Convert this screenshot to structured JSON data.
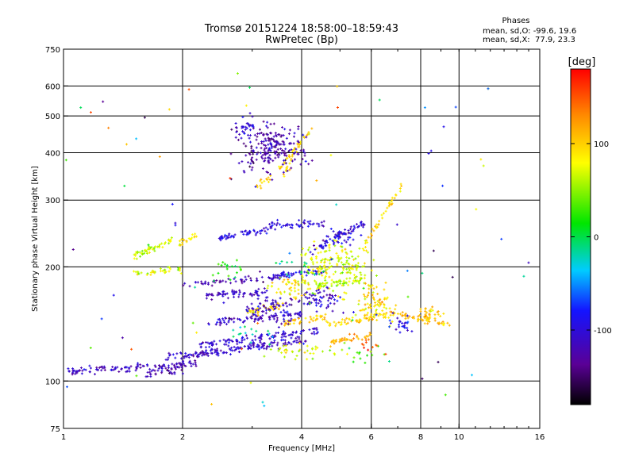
{
  "chart_data": {
    "type": "scatter",
    "title": "Tromsø 20151224 18:58:00–18:59:43",
    "subtitle": "RwPretec (Bp)",
    "stats": {
      "heading": "Phases",
      "line_o": "mean, sd,O: -99.6, 19.6",
      "line_x": "mean, sd,X:  77.9, 23.3"
    },
    "xlabel": "Frequency [MHz]",
    "ylabel": "Stationary phase Virtual Height [km]",
    "x_scale": "log",
    "y_scale": "log",
    "xlim": [
      1,
      16
    ],
    "ylim": [
      75,
      750
    ],
    "x_ticks": [
      {
        "value": 1,
        "label": "1"
      },
      {
        "value": 2,
        "label": "2"
      },
      {
        "value": 4,
        "label": "4"
      },
      {
        "value": 6,
        "label": "6"
      },
      {
        "value": 8,
        "label": "8"
      },
      {
        "value": 10,
        "label": "10"
      },
      {
        "value": 16,
        "label": "16"
      }
    ],
    "y_ticks": [
      {
        "value": 75,
        "label": "75"
      },
      {
        "value": 100,
        "label": "100"
      },
      {
        "value": 200,
        "label": "200"
      },
      {
        "value": 300,
        "label": "300"
      },
      {
        "value": 400,
        "label": "400"
      },
      {
        "value": 500,
        "label": "500"
      },
      {
        "value": 600,
        "label": "600"
      },
      {
        "value": 750,
        "label": "750"
      }
    ],
    "x_grid": [
      2,
      4,
      6,
      8,
      10
    ],
    "y_grid": [
      100,
      200,
      300,
      400,
      500,
      600
    ],
    "grid": true,
    "colorbar": {
      "label": "[deg]",
      "range": [
        -180,
        180
      ],
      "ticks": [
        {
          "value": 100,
          "label": "100"
        },
        {
          "value": 0,
          "label": "0"
        },
        {
          "value": -100,
          "label": "-100"
        }
      ],
      "placement": "right"
    },
    "clusters": [
      {
        "type": "trace",
        "x0": 1.02,
        "x1": 2.2,
        "h0": 106,
        "h1": 111,
        "phase": -115,
        "n": 120
      },
      {
        "type": "trace",
        "x0": 1.8,
        "x1": 4.1,
        "h0": 115,
        "h1": 128,
        "phase": -110,
        "n": 150
      },
      {
        "type": "trace",
        "x0": 1.6,
        "x1": 2.1,
        "h0": 105,
        "h1": 108,
        "phase": -125,
        "n": 30
      },
      {
        "type": "trace",
        "x0": 2.2,
        "x1": 4.4,
        "h0": 124,
        "h1": 136,
        "phase": -105,
        "n": 110
      },
      {
        "type": "trace",
        "x0": 2.3,
        "x1": 4.0,
        "h0": 143,
        "h1": 150,
        "phase": -110,
        "n": 80
      },
      {
        "type": "trace",
        "x0": 2.3,
        "x1": 3.3,
        "h0": 168,
        "h1": 172,
        "phase": -115,
        "n": 60
      },
      {
        "type": "trace",
        "x0": 2.0,
        "x1": 3.2,
        "h0": 180,
        "h1": 186,
        "phase": -120,
        "n": 45
      },
      {
        "type": "trace",
        "x0": 3.3,
        "x1": 4.6,
        "h0": 188,
        "h1": 196,
        "phase": -100,
        "n": 60
      },
      {
        "type": "trace",
        "x0": 4.3,
        "x1": 5.8,
        "h0": 178,
        "h1": 186,
        "phase": 60,
        "n": 50
      },
      {
        "type": "trace",
        "x0": 2.4,
        "x1": 3.3,
        "h0": 236,
        "h1": 252,
        "phase": -95,
        "n": 50
      },
      {
        "type": "trace",
        "x0": 3.3,
        "x1": 4.6,
        "h0": 256,
        "h1": 262,
        "phase": -100,
        "n": 50
      },
      {
        "type": "trace",
        "x0": 4.2,
        "x1": 5.8,
        "h0": 220,
        "h1": 262,
        "phase": -105,
        "n": 60
      },
      {
        "type": "trace",
        "x0": 1.5,
        "x1": 1.9,
        "h0": 212,
        "h1": 238,
        "phase": 65,
        "n": 55
      },
      {
        "type": "trace",
        "x0": 1.5,
        "x1": 2.0,
        "h0": 192,
        "h1": 198,
        "phase": 70,
        "n": 35
      },
      {
        "type": "trace",
        "x0": 1.95,
        "x1": 2.2,
        "h0": 230,
        "h1": 245,
        "phase": 90,
        "n": 20
      },
      {
        "type": "trace",
        "x0": 2.9,
        "x1": 3.6,
        "h0": 150,
        "h1": 160,
        "phase": 95,
        "n": 40
      },
      {
        "type": "trace",
        "x0": 3.6,
        "x1": 4.6,
        "h0": 142,
        "h1": 148,
        "phase": 100,
        "n": 40
      },
      {
        "type": "trace",
        "x0": 4.6,
        "x1": 7.0,
        "h0": 140,
        "h1": 152,
        "phase": 95,
        "n": 60
      },
      {
        "type": "trace",
        "x0": 7.0,
        "x1": 9.5,
        "h0": 150,
        "h1": 140,
        "phase": 105,
        "n": 45
      },
      {
        "type": "trace",
        "x0": 4.7,
        "x1": 6.0,
        "h0": 126,
        "h1": 132,
        "phase": 110,
        "n": 40
      },
      {
        "type": "trace",
        "x0": 5.8,
        "x1": 7.2,
        "h0": 230,
        "h1": 330,
        "phase": 95,
        "n": 40
      },
      {
        "type": "trace",
        "x0": 3.5,
        "x1": 4.3,
        "h0": 360,
        "h1": 470,
        "phase": 95,
        "n": 35
      },
      {
        "type": "trace",
        "x0": 3.05,
        "x1": 3.35,
        "h0": 325,
        "h1": 345,
        "phase": 100,
        "n": 14
      },
      {
        "type": "trace",
        "x0": 3.6,
        "x1": 3.8,
        "h0": 350,
        "h1": 378,
        "phase": 90,
        "n": 12
      },
      {
        "type": "blob",
        "xc": 3.35,
        "hc": 410,
        "dx": 0.16,
        "dh": 0.12,
        "phase": -125,
        "n": 220
      },
      {
        "type": "blob",
        "xc": 2.9,
        "hc": 470,
        "dx": 0.05,
        "dh": 0.05,
        "phase": -105,
        "n": 25
      },
      {
        "type": "blob",
        "xc": 3.3,
        "hc": 155,
        "dx": 0.14,
        "dh": 0.07,
        "phase": -115,
        "n": 80
      },
      {
        "type": "blob",
        "xc": 4.5,
        "hc": 205,
        "dx": 0.12,
        "dh": 0.12,
        "phase": 75,
        "n": 100
      },
      {
        "type": "blob",
        "xc": 5.4,
        "hc": 195,
        "dx": 0.1,
        "dh": 0.12,
        "phase": 70,
        "n": 80
      },
      {
        "type": "blob",
        "xc": 6.1,
        "hc": 160,
        "dx": 0.08,
        "dh": 0.1,
        "phase": 95,
        "n": 80
      },
      {
        "type": "blob",
        "xc": 5.0,
        "hc": 240,
        "dx": 0.06,
        "dh": 0.06,
        "phase": -95,
        "n": 30
      },
      {
        "type": "blob",
        "xc": 4.5,
        "hc": 165,
        "dx": 0.1,
        "dh": 0.06,
        "phase": -110,
        "n": 60
      },
      {
        "type": "blob",
        "xc": 4.0,
        "hc": 120,
        "dx": 0.15,
        "dh": 0.04,
        "phase": 70,
        "n": 35
      },
      {
        "type": "blob",
        "xc": 8.5,
        "hc": 150,
        "dx": 0.06,
        "dh": 0.04,
        "phase": 105,
        "n": 30
      },
      {
        "type": "blob",
        "xc": 7.2,
        "hc": 140,
        "dx": 0.06,
        "dh": 0.05,
        "phase": -95,
        "n": 25
      },
      {
        "type": "blob",
        "xc": 3.8,
        "hc": 175,
        "dx": 0.1,
        "dh": 0.06,
        "phase": 90,
        "n": 50
      },
      {
        "type": "blob",
        "xc": 2.7,
        "hc": 200,
        "dx": 0.1,
        "dh": 0.06,
        "phase": 20,
        "n": 20
      },
      {
        "type": "blob",
        "xc": 5.5,
        "hc": 120,
        "dx": 0.12,
        "dh": 0.05,
        "phase": 30,
        "n": 15
      },
      {
        "type": "blob",
        "xc": 6.0,
        "hc": 125,
        "dx": 0.1,
        "dh": 0.04,
        "phase": 160,
        "n": 10
      },
      {
        "type": "blob",
        "xc": 4.0,
        "hc": 195,
        "dx": 0.15,
        "dh": 0.05,
        "phase": -10,
        "n": 15
      },
      {
        "type": "blob",
        "xc": 3.0,
        "hc": 135,
        "dx": 0.12,
        "dh": 0.05,
        "phase": -20,
        "n": 15
      },
      {
        "type": "scatter",
        "x0": 1.0,
        "x1": 15.0,
        "h0": 78,
        "h1": 650,
        "phase": 0,
        "n": 90
      }
    ]
  }
}
